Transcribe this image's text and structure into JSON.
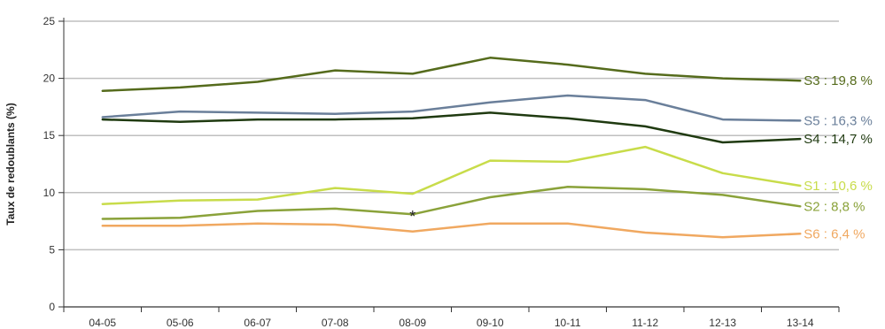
{
  "chart_data": {
    "type": "line",
    "categories": [
      "04-05",
      "05-06",
      "06-07",
      "07-08",
      "08-09",
      "09-10",
      "10-11",
      "11-12",
      "12-13",
      "13-14"
    ],
    "ylabel": "Taux de redoublants (%)",
    "ylim": [
      0,
      25
    ],
    "yticks": [
      0,
      5,
      10,
      15,
      20,
      25
    ],
    "grid": true,
    "series": [
      {
        "name": "S3",
        "label": "S3 : 19,8 %",
        "color": "#556b1c",
        "values": [
          18.9,
          19.2,
          19.7,
          20.7,
          20.4,
          21.8,
          21.2,
          20.4,
          20.0,
          19.8
        ]
      },
      {
        "name": "S5",
        "label": "S5 : 16,3 %",
        "color": "#6a7f9a",
        "values": [
          16.6,
          17.1,
          17.0,
          16.9,
          17.1,
          17.9,
          18.5,
          18.1,
          16.4,
          16.3
        ]
      },
      {
        "name": "S4",
        "label": "S4 : 14,7 %",
        "color": "#1f3a10",
        "values": [
          16.4,
          16.2,
          16.4,
          16.4,
          16.5,
          17.0,
          16.5,
          15.8,
          14.4,
          14.7
        ]
      },
      {
        "name": "S1",
        "label": "S1 : 10,6 %",
        "color": "#c8dc4a",
        "values": [
          9.0,
          9.3,
          9.4,
          10.4,
          9.9,
          12.8,
          12.7,
          14.0,
          11.7,
          10.6
        ]
      },
      {
        "name": "S2",
        "label": "S2 : 8,8 %",
        "color": "#8aa23a",
        "values": [
          7.7,
          7.8,
          8.4,
          8.6,
          8.1,
          9.6,
          10.5,
          10.3,
          9.8,
          8.8
        ]
      },
      {
        "name": "S6",
        "label": "S6 : 6,4 %",
        "color": "#f0a860",
        "values": [
          7.1,
          7.1,
          7.3,
          7.2,
          6.6,
          7.3,
          7.3,
          6.5,
          6.1,
          6.4
        ]
      }
    ],
    "annotations": [
      {
        "text": "*",
        "x": 4.5,
        "y": 8.2
      }
    ]
  }
}
